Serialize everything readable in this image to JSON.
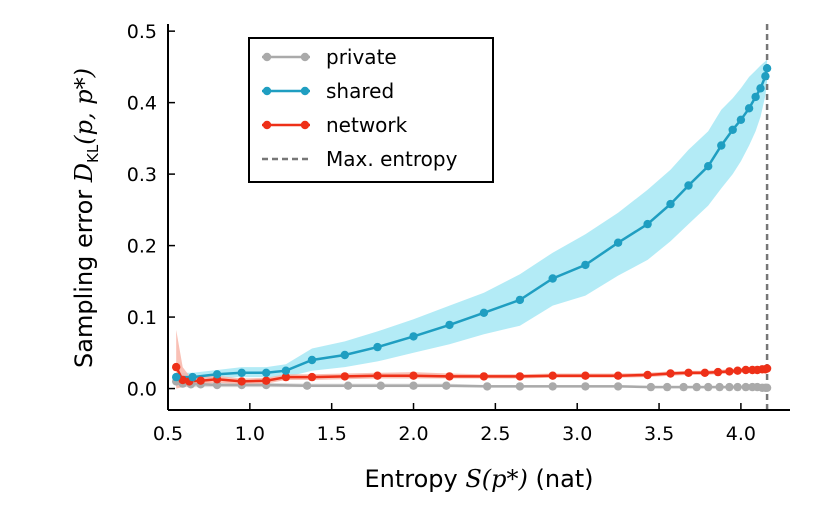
{
  "chart_data": {
    "type": "line",
    "xlabel": {
      "pre": "Entropy ",
      "math": "S(p*)",
      "post": " (nat)"
    },
    "ylabel": {
      "pre": "Sampling error ",
      "math": "D",
      "sub": "KL",
      "math2": "(p, p*)"
    },
    "xlim": [
      0.5,
      4.3
    ],
    "ylim": [
      -0.03,
      0.51
    ],
    "xticks": [
      0.5,
      1.0,
      1.5,
      2.0,
      2.5,
      3.0,
      3.5,
      4.0
    ],
    "xtick_labels": [
      "0.5",
      "1.0",
      "1.5",
      "2.0",
      "2.5",
      "3.0",
      "3.5",
      "4.0"
    ],
    "yticks": [
      0.0,
      0.1,
      0.2,
      0.3,
      0.4,
      0.5
    ],
    "ytick_labels": [
      "0.0",
      "0.1",
      "0.2",
      "0.3",
      "0.4",
      "0.5"
    ],
    "max_entropy": 4.16,
    "legend_position": "top-left",
    "series": [
      {
        "name": "private",
        "color": "#aaaaaa",
        "band_color": "#d9d9d9",
        "x": [
          0.55,
          0.59,
          0.64,
          0.7,
          0.8,
          0.95,
          1.1,
          1.35,
          1.6,
          1.8,
          2.0,
          2.2,
          2.45,
          2.65,
          2.85,
          3.05,
          3.25,
          3.45,
          3.55,
          3.65,
          3.73,
          3.8,
          3.87,
          3.93,
          3.98,
          4.03,
          4.07,
          4.1,
          4.13,
          4.15,
          4.16
        ],
        "y": [
          0.01,
          0.007,
          0.006,
          0.006,
          0.005,
          0.005,
          0.005,
          0.004,
          0.004,
          0.004,
          0.004,
          0.004,
          0.003,
          0.003,
          0.003,
          0.003,
          0.003,
          0.002,
          0.002,
          0.002,
          0.002,
          0.002,
          0.002,
          0.002,
          0.002,
          0.002,
          0.002,
          0.002,
          0.001,
          0.001,
          0.001
        ],
        "lower": [
          0.002,
          0.002,
          0.002,
          0.002,
          0.002,
          0.002,
          0.002,
          0.002,
          0.002,
          0.002,
          0.002,
          0.002,
          0.002,
          0.002,
          0.002,
          0.002,
          0.002,
          0.001,
          0.001,
          0.001,
          0.001,
          0.001,
          0.001,
          0.001,
          0.001,
          0.001,
          0.001,
          0.001,
          0.0,
          0.0,
          0.0
        ],
        "upper": [
          0.02,
          0.013,
          0.01,
          0.01,
          0.008,
          0.008,
          0.008,
          0.007,
          0.007,
          0.007,
          0.007,
          0.007,
          0.005,
          0.005,
          0.005,
          0.005,
          0.005,
          0.004,
          0.004,
          0.004,
          0.004,
          0.004,
          0.004,
          0.004,
          0.004,
          0.004,
          0.004,
          0.004,
          0.003,
          0.003,
          0.003
        ]
      },
      {
        "name": "shared",
        "color": "#1f9ec1",
        "band_color": "#a6e8f5",
        "x": [
          0.55,
          0.65,
          0.8,
          0.95,
          1.1,
          1.22,
          1.38,
          1.58,
          1.78,
          2.0,
          2.22,
          2.43,
          2.65,
          2.85,
          3.05,
          3.25,
          3.43,
          3.57,
          3.68,
          3.8,
          3.88,
          3.95,
          4.0,
          4.05,
          4.09,
          4.12,
          4.15,
          4.16
        ],
        "y": [
          0.016,
          0.016,
          0.02,
          0.022,
          0.022,
          0.025,
          0.04,
          0.047,
          0.058,
          0.073,
          0.089,
          0.106,
          0.124,
          0.154,
          0.173,
          0.204,
          0.23,
          0.258,
          0.284,
          0.311,
          0.34,
          0.362,
          0.376,
          0.392,
          0.408,
          0.42,
          0.437,
          0.448
        ],
        "lower": [
          0.012,
          0.012,
          0.015,
          0.016,
          0.016,
          0.016,
          0.025,
          0.03,
          0.038,
          0.05,
          0.062,
          0.076,
          0.088,
          0.116,
          0.13,
          0.158,
          0.18,
          0.206,
          0.23,
          0.256,
          0.28,
          0.3,
          0.318,
          0.34,
          0.36,
          0.38,
          0.41,
          0.43
        ],
        "upper": [
          0.022,
          0.022,
          0.026,
          0.03,
          0.03,
          0.034,
          0.056,
          0.066,
          0.08,
          0.097,
          0.116,
          0.134,
          0.16,
          0.19,
          0.216,
          0.246,
          0.278,
          0.306,
          0.334,
          0.36,
          0.39,
          0.406,
          0.42,
          0.436,
          0.445,
          0.452,
          0.458,
          0.462
        ]
      },
      {
        "name": "network",
        "color": "#ee3018",
        "band_color": "#f8b5a8",
        "x": [
          0.55,
          0.59,
          0.63,
          0.7,
          0.8,
          0.95,
          1.1,
          1.22,
          1.38,
          1.58,
          1.78,
          2.0,
          2.22,
          2.43,
          2.65,
          2.85,
          3.05,
          3.25,
          3.43,
          3.57,
          3.68,
          3.78,
          3.86,
          3.93,
          3.98,
          4.03,
          4.07,
          4.1,
          4.13,
          4.15,
          4.16
        ],
        "y": [
          0.03,
          0.012,
          0.01,
          0.011,
          0.013,
          0.01,
          0.011,
          0.016,
          0.016,
          0.017,
          0.018,
          0.018,
          0.017,
          0.017,
          0.017,
          0.018,
          0.018,
          0.018,
          0.019,
          0.021,
          0.022,
          0.022,
          0.023,
          0.024,
          0.025,
          0.026,
          0.026,
          0.026,
          0.027,
          0.027,
          0.028
        ],
        "lower": [
          0.0,
          0.002,
          0.004,
          0.006,
          0.008,
          0.006,
          0.007,
          0.012,
          0.012,
          0.013,
          0.014,
          0.014,
          0.014,
          0.014,
          0.014,
          0.015,
          0.015,
          0.015,
          0.016,
          0.018,
          0.019,
          0.019,
          0.02,
          0.021,
          0.022,
          0.023,
          0.023,
          0.023,
          0.024,
          0.024,
          0.025
        ],
        "upper": [
          0.082,
          0.03,
          0.018,
          0.016,
          0.018,
          0.014,
          0.015,
          0.02,
          0.02,
          0.021,
          0.022,
          0.023,
          0.021,
          0.02,
          0.02,
          0.021,
          0.021,
          0.021,
          0.022,
          0.024,
          0.025,
          0.025,
          0.026,
          0.027,
          0.028,
          0.029,
          0.029,
          0.029,
          0.03,
          0.03,
          0.031
        ]
      }
    ],
    "legend": [
      {
        "label": "private",
        "style": "line-marker",
        "color": "#aaaaaa"
      },
      {
        "label": "shared",
        "style": "line-marker",
        "color": "#1f9ec1"
      },
      {
        "label": "network",
        "style": "line-marker",
        "color": "#ee3018"
      },
      {
        "label": "Max. entropy",
        "style": "dashed",
        "color": "#777777"
      }
    ]
  }
}
